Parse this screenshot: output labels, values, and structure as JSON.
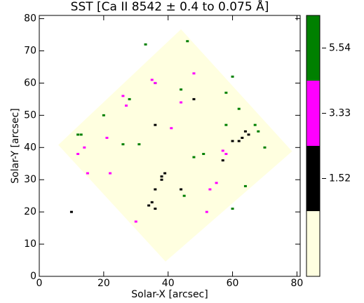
{
  "chart_data": {
    "type": "map",
    "title": "SST [Ca II 8542 ± 0.4 to 0.075 Å]",
    "x_label": "Solar-X [arcsec]",
    "y_label": "Solar-Y [arcsec]",
    "xlim": [
      0,
      81
    ],
    "ylim": [
      0,
      81
    ],
    "xticks": [
      0,
      20,
      40,
      60,
      80
    ],
    "yticks": [
      0,
      10,
      20,
      30,
      40,
      50,
      60,
      70,
      80
    ],
    "field_of_view": {
      "color": "#ffffe0",
      "x": [
        44,
        78.5,
        39.2,
        5.9
      ],
      "y": [
        76.7,
        38.8,
        4.6,
        40.8
      ]
    },
    "features": [
      {
        "color": "#008000",
        "x": [
          12,
          13,
          20,
          28,
          33,
          46,
          58,
          62,
          58,
          67,
          51,
          48,
          64,
          60,
          45,
          36,
          31,
          60,
          68,
          70,
          44,
          26
        ],
        "y": [
          44,
          44,
          50,
          55,
          72,
          73,
          57,
          52,
          47,
          47,
          38,
          37,
          28,
          21,
          25,
          60,
          41,
          62,
          45,
          40,
          58,
          41
        ]
      },
      {
        "color": "#000000",
        "x": [
          38,
          38,
          39,
          36,
          35,
          34,
          36,
          64,
          65,
          62,
          60,
          63,
          57,
          10,
          36,
          48,
          44
        ],
        "y": [
          31,
          30,
          32,
          27,
          23,
          22,
          21,
          45,
          44,
          42,
          42,
          43,
          36,
          20,
          47,
          55,
          27
        ]
      },
      {
        "color": "#ff00ff",
        "x": [
          35,
          36,
          26,
          27,
          14,
          12,
          21,
          15,
          55,
          53,
          57,
          58,
          41,
          44,
          30,
          52,
          48,
          22
        ],
        "y": [
          61,
          60,
          56,
          53,
          40,
          38,
          43,
          32,
          29,
          27,
          39,
          38,
          46,
          54,
          17,
          20,
          63,
          32
        ]
      }
    ],
    "colorbar": {
      "colors": [
        "#ffffe0",
        "#000000",
        "#ff00ff",
        "#008000"
      ],
      "labels": [
        "1.52",
        "3.33",
        "5.54"
      ]
    }
  }
}
